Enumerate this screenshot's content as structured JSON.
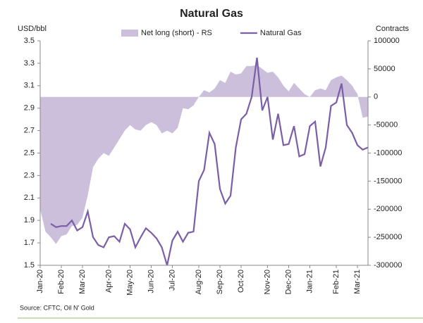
{
  "chart_data": {
    "type": "area-line",
    "title": "Natural Gas",
    "y_label": "USD/bbl",
    "y2_label": "Contracts",
    "source": "Source: CFTC, Oil N' Gold",
    "categories": [
      "Jan-20",
      null,
      null,
      null,
      "Feb-20",
      null,
      null,
      null,
      "Mar-20",
      null,
      null,
      null,
      null,
      "Apr-20",
      null,
      null,
      null,
      "May-20",
      null,
      null,
      null,
      "Jun-20",
      null,
      null,
      null,
      "Jul-20",
      null,
      null,
      null,
      null,
      "Aug-20",
      null,
      null,
      null,
      "Sep-20",
      null,
      null,
      null,
      "Oct-20",
      null,
      null,
      null,
      null,
      "Nov-20",
      null,
      null,
      null,
      "Dec-20",
      null,
      null,
      null,
      "Jan-21",
      null,
      null,
      null,
      null,
      "Feb-21",
      null,
      null,
      null,
      "Mar-21",
      null,
      null
    ],
    "series": [
      {
        "name": "Net long (short) - RS",
        "kind": "area",
        "axis": "y2",
        "color": "#cbbfdc",
        "values": [
          -200000,
          -240000,
          -250000,
          -262000,
          -248000,
          -245000,
          -230000,
          -228000,
          -215000,
          -175000,
          -125000,
          -110000,
          -100000,
          -105000,
          -90000,
          -75000,
          -60000,
          -50000,
          -58000,
          -60000,
          -50000,
          -45000,
          -50000,
          -65000,
          -60000,
          -65000,
          -55000,
          -20000,
          -22000,
          -15000,
          0,
          12000,
          8000,
          15000,
          30000,
          25000,
          45000,
          40000,
          42000,
          55000,
          55000,
          57000,
          50000,
          43000,
          45000,
          35000,
          20000,
          10000,
          25000,
          15000,
          5000,
          0,
          12000,
          15000,
          12000,
          30000,
          35000,
          38000,
          30000,
          20000,
          5000,
          -37000,
          -35000
        ]
      },
      {
        "name": "Natural Gas",
        "kind": "line",
        "color": "#7a5ea8",
        "values": [
          null,
          null,
          1.87,
          1.84,
          1.85,
          1.85,
          1.9,
          1.81,
          1.84,
          1.98,
          1.75,
          1.68,
          1.66,
          1.75,
          1.76,
          1.71,
          1.87,
          1.82,
          1.66,
          1.75,
          1.83,
          1.79,
          1.74,
          1.66,
          1.5,
          1.72,
          1.8,
          1.71,
          1.79,
          1.8,
          2.25,
          2.35,
          2.68,
          2.58,
          2.18,
          2.05,
          2.12,
          2.55,
          2.8,
          2.85,
          3.0,
          3.35,
          2.88,
          3.0,
          2.62,
          2.85,
          2.57,
          2.58,
          2.74,
          2.47,
          2.49,
          2.74,
          2.78,
          2.38,
          2.55,
          2.92,
          2.95,
          3.12,
          2.75,
          2.68,
          2.57,
          2.53,
          2.55
        ]
      }
    ],
    "ylim": [
      1.5,
      3.5
    ],
    "yticks": [
      1.5,
      1.7,
      1.9,
      2.1,
      2.3,
      2.5,
      2.7,
      2.9,
      3.1,
      3.3,
      3.5
    ],
    "y2lim": [
      -300000,
      100000
    ],
    "y2ticks": [
      -300000,
      -250000,
      -200000,
      -150000,
      -100000,
      -50000,
      0,
      50000,
      100000
    ]
  }
}
